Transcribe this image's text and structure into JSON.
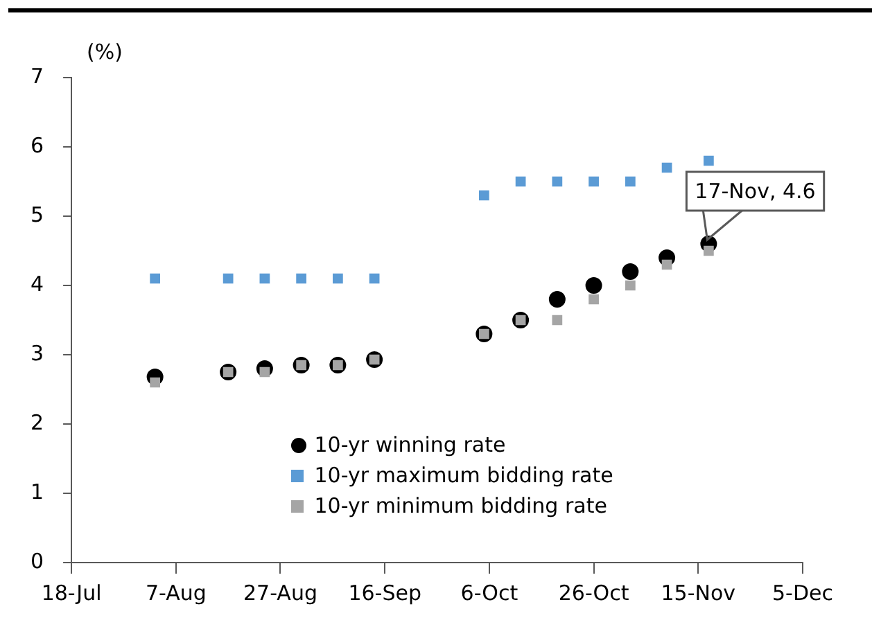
{
  "chart_data": {
    "type": "scatter",
    "ylabel": "(%)",
    "x": [
      "--08-03",
      "--08-17",
      "--08-24",
      "--08-31",
      "--09-07",
      "--09-14",
      "--10-05",
      "--10-12",
      "--10-19",
      "--10-26",
      "--11-02",
      "--11-09",
      "--11-17"
    ],
    "series": [
      {
        "name": "10-yr winning rate",
        "color": "#000000",
        "marker": "circle",
        "values": [
          2.68,
          2.75,
          2.8,
          2.85,
          2.85,
          2.93,
          3.3,
          3.5,
          3.8,
          4.0,
          4.2,
          4.4,
          4.6
        ]
      },
      {
        "name": "10-yr maximum bidding rate",
        "color": "#5b9bd5",
        "marker": "square",
        "values": [
          4.1,
          4.1,
          4.1,
          4.1,
          4.1,
          4.1,
          5.3,
          5.5,
          5.5,
          5.5,
          5.5,
          5.7,
          5.8
        ]
      },
      {
        "name": "10-yr minimum bidding rate",
        "color": "#a5a5a5",
        "marker": "square",
        "values": [
          2.6,
          2.75,
          2.75,
          2.85,
          2.85,
          2.93,
          3.3,
          3.5,
          3.5,
          3.8,
          4.0,
          4.3,
          4.5
        ]
      }
    ],
    "xlim": [
      "--07-18",
      "--12-05"
    ],
    "xticks": [
      {
        "value": "--07-18",
        "label": "18-Jul"
      },
      {
        "value": "--08-07",
        "label": "7-Aug"
      },
      {
        "value": "--08-27",
        "label": "27-Aug"
      },
      {
        "value": "--09-16",
        "label": "16-Sep"
      },
      {
        "value": "--10-06",
        "label": "6-Oct"
      },
      {
        "value": "--10-26",
        "label": "26-Oct"
      },
      {
        "value": "--11-15",
        "label": "15-Nov"
      },
      {
        "value": "--12-05",
        "label": "5-Dec"
      }
    ],
    "ylim": [
      0,
      7
    ],
    "yticks": [
      0,
      1,
      2,
      3,
      4,
      5,
      6,
      7
    ],
    "grid": false,
    "legend": "bottom",
    "annotations": [
      {
        "text": "17-Nov, 4.6",
        "x": "--11-17",
        "y": 4.6
      }
    ]
  }
}
